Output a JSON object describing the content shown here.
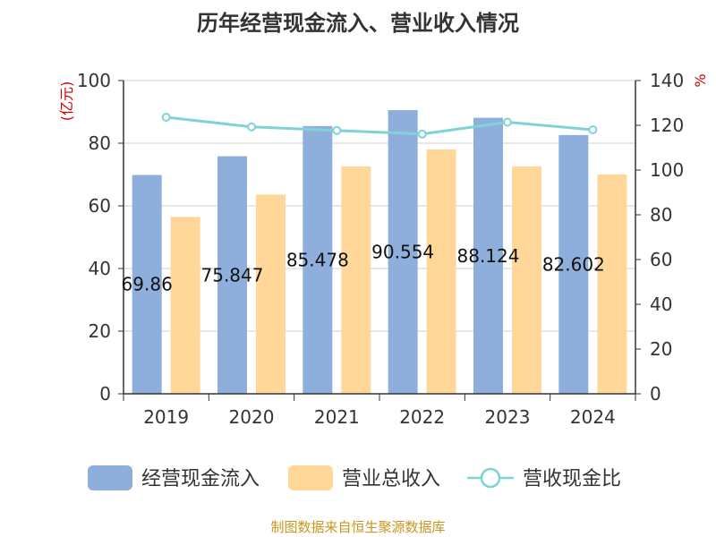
{
  "chart_data": {
    "type": "bar",
    "title": "历年经营现金流入、营业收入情况",
    "categories": [
      "2019",
      "2020",
      "2021",
      "2022",
      "2023",
      "2024"
    ],
    "ylabel_left": "(亿元)",
    "ylabel_right": "%",
    "ylim_left": [
      0,
      100
    ],
    "ylim_right": [
      0,
      140
    ],
    "yticks_left": [
      0,
      20,
      40,
      60,
      80,
      100
    ],
    "yticks_right": [
      0,
      20,
      40,
      60,
      80,
      100,
      120,
      140
    ],
    "grid": true,
    "legend_position": "bottom",
    "series": [
      {
        "name": "经营现金流入",
        "type": "bar",
        "axis": "left",
        "color": "#8eaedb",
        "values": [
          69.86,
          75.847,
          85.478,
          90.554,
          88.124,
          82.602
        ],
        "labels": [
          "69.86",
          "75.847",
          "85.478",
          "90.554",
          "88.124",
          "82.602"
        ]
      },
      {
        "name": "营业总收入",
        "type": "bar",
        "axis": "left",
        "color": "#ffd899",
        "values": [
          56.5,
          63.6,
          72.6,
          78.0,
          72.6,
          70.0
        ]
      },
      {
        "name": "营收现金比",
        "type": "line",
        "axis": "right",
        "color": "#7fd3d6",
        "values": [
          123.6,
          119.3,
          117.7,
          116.1,
          121.4,
          118.0
        ]
      }
    ],
    "source": "制图数据来自恒生聚源数据库"
  }
}
